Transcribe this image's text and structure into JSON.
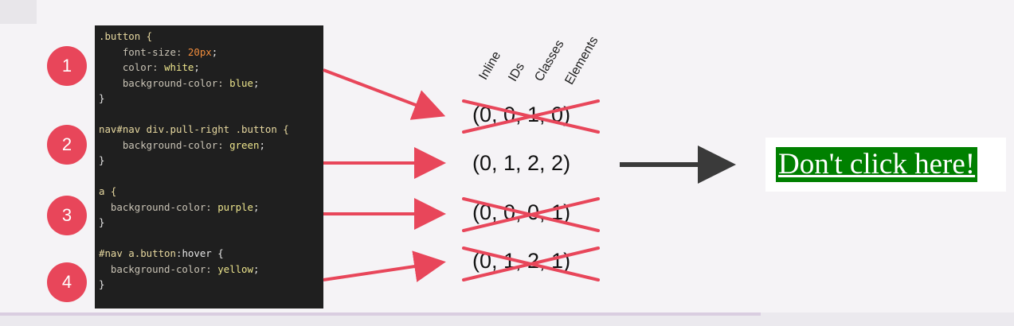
{
  "code_blocks": [
    {
      "number": "1",
      "lines": [
        [
          {
            "t": ".button {",
            "c": "sel"
          }
        ],
        [
          {
            "t": "    font-size: ",
            "c": "prop"
          },
          {
            "t": "20px",
            "c": "num"
          },
          {
            "t": ";",
            "c": "punc"
          }
        ],
        [
          {
            "t": "    color: ",
            "c": "prop"
          },
          {
            "t": "white",
            "c": "val"
          },
          {
            "t": ";",
            "c": "punc"
          }
        ],
        [
          {
            "t": "    background-color: ",
            "c": "prop"
          },
          {
            "t": "blue",
            "c": "val"
          },
          {
            "t": ";",
            "c": "punc"
          }
        ],
        [
          {
            "t": "}",
            "c": "punc"
          }
        ]
      ]
    },
    {
      "number": "2",
      "lines": [
        [
          {
            "t": "nav#nav div.pull-right .button {",
            "c": "sel"
          }
        ],
        [
          {
            "t": "    background-color: ",
            "c": "prop"
          },
          {
            "t": "green",
            "c": "val"
          },
          {
            "t": ";",
            "c": "punc"
          }
        ],
        [
          {
            "t": "}",
            "c": "punc"
          }
        ]
      ]
    },
    {
      "number": "3",
      "lines": [
        [
          {
            "t": "a {",
            "c": "sel"
          }
        ],
        [
          {
            "t": "  background-color: ",
            "c": "prop"
          },
          {
            "t": "purple",
            "c": "val"
          },
          {
            "t": ";",
            "c": "punc"
          }
        ],
        [
          {
            "t": "}",
            "c": "punc"
          }
        ]
      ]
    },
    {
      "number": "4",
      "lines": [
        [
          {
            "t": "#nav a.button",
            "c": "sel"
          },
          {
            "t": ":hover {",
            "c": "punc"
          }
        ],
        [
          {
            "t": "  background-color: ",
            "c": "prop"
          },
          {
            "t": "yellow",
            "c": "val"
          },
          {
            "t": ";",
            "c": "punc"
          }
        ],
        [
          {
            "t": "}",
            "c": "punc"
          }
        ]
      ]
    }
  ],
  "column_headers": [
    "Inline",
    "IDs",
    "Classes",
    "Elements"
  ],
  "specificities": [
    {
      "text": "(0, 0, 1, 0)",
      "crossed_out": true
    },
    {
      "text": "(0, 1, 2, 2)",
      "crossed_out": false
    },
    {
      "text": "(0, 0, 0, 1)",
      "crossed_out": true
    },
    {
      "text": "(0, 1, 2, 1)",
      "crossed_out": true
    }
  ],
  "result": {
    "label": "Don't click here!",
    "background": "#008000",
    "text_color": "#ffffff"
  },
  "colors": {
    "accent": "#e8465a",
    "arrow_dark": "#3a3a3a",
    "code_bg": "#1f1f1f"
  }
}
